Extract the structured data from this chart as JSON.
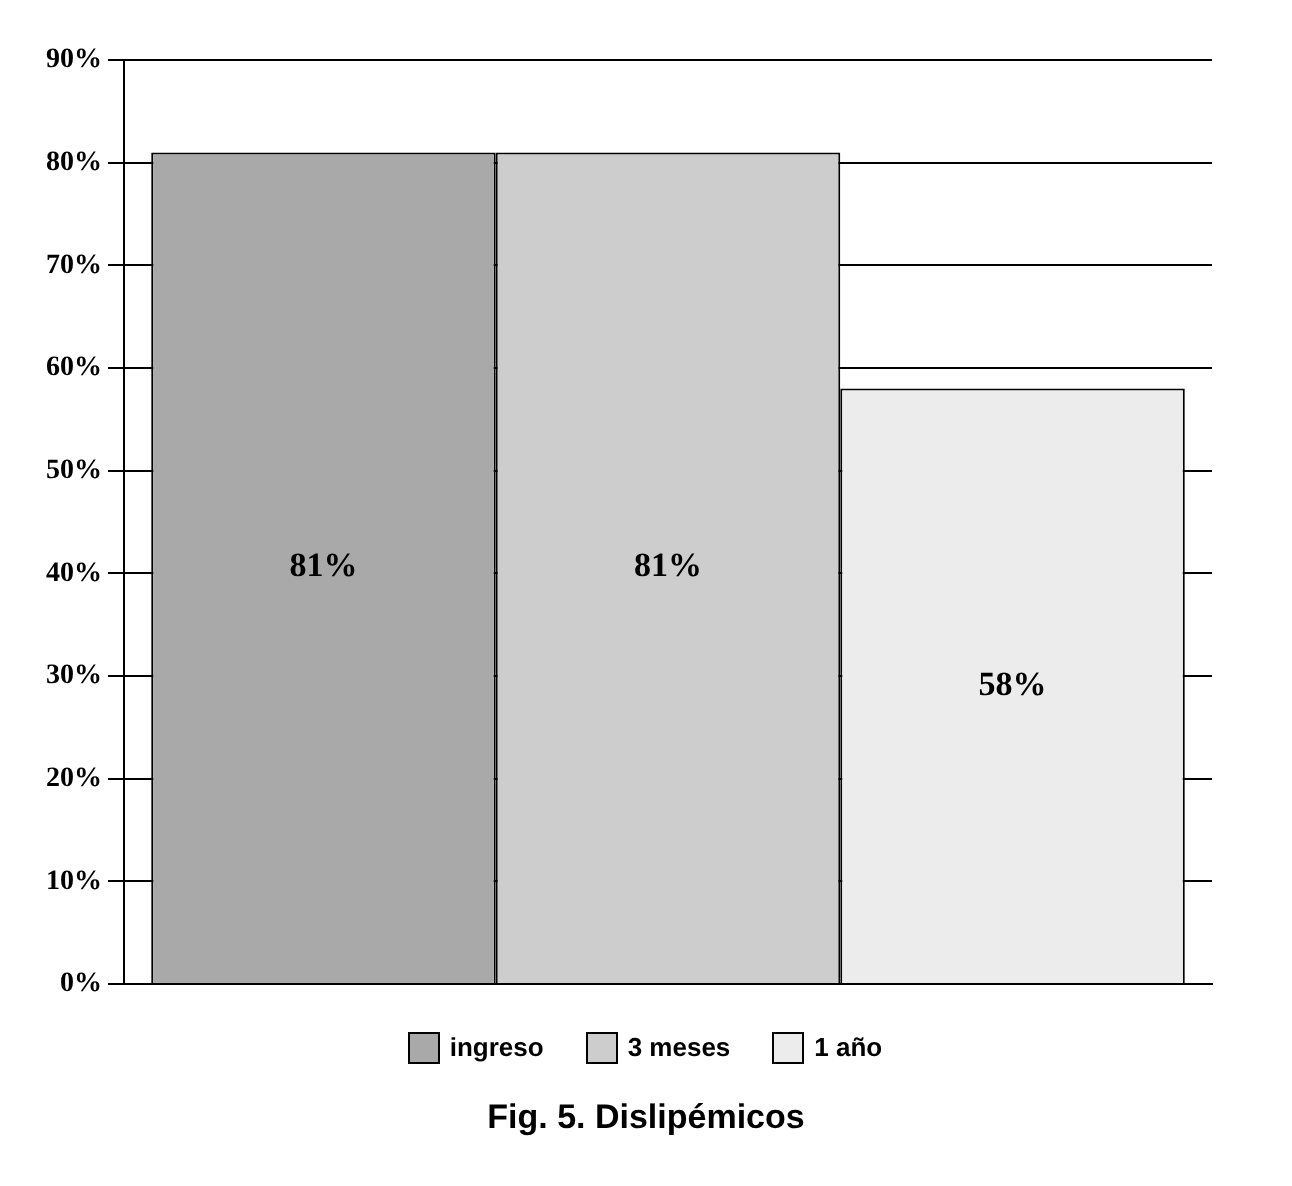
{
  "chart_data": {
    "type": "bar",
    "title": "Fig. 5. Dislipémicos",
    "categories": [
      null
    ],
    "series": [
      {
        "name": "ingreso",
        "color": "#a9a9a9",
        "values": [
          81
        ],
        "value_labels": [
          "81%"
        ]
      },
      {
        "name": "3 meses",
        "color": "#cdcdcd",
        "values": [
          81
        ],
        "value_labels": [
          "81%"
        ]
      },
      {
        "name": "1 año",
        "color": "#ececec",
        "values": [
          58
        ],
        "value_labels": [
          "58%"
        ]
      }
    ],
    "ylim": [
      0,
      90
    ],
    "yticks": [
      {
        "value": 0,
        "label": "0%"
      },
      {
        "value": 10,
        "label": "10%"
      },
      {
        "value": 20,
        "label": "20%"
      },
      {
        "value": 30,
        "label": "30%"
      },
      {
        "value": 40,
        "label": "40%"
      },
      {
        "value": 50,
        "label": "50%"
      },
      {
        "value": 60,
        "label": "60%"
      },
      {
        "value": 70,
        "label": "70%"
      },
      {
        "value": 80,
        "label": "80%"
      },
      {
        "value": 90,
        "label": "90%"
      }
    ],
    "grid": "y",
    "legend": "bottom"
  }
}
